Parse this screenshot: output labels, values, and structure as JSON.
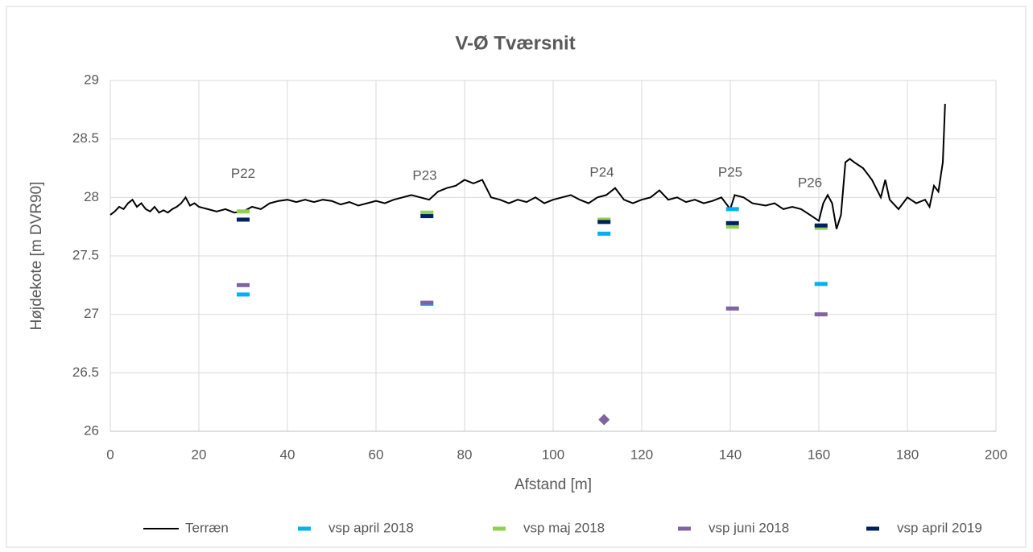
{
  "chart_data": {
    "type": "line",
    "title": "V-Ø Tværsnit",
    "x_label": "Afstand [m]",
    "y_label": "Højdekote [m DVR90]",
    "xlim": [
      0,
      200
    ],
    "xticks": [
      0,
      20,
      40,
      60,
      80,
      100,
      120,
      140,
      160,
      180,
      200
    ],
    "ylim": [
      26,
      29
    ],
    "yticks": [
      26,
      26.5,
      27,
      27.5,
      28,
      28.5,
      29
    ],
    "grid": true,
    "legend": "bottom",
    "annotations": [
      {
        "text": "P22",
        "x": 30,
        "y": 28.2
      },
      {
        "text": "P23",
        "x": 71,
        "y": 28.18
      },
      {
        "text": "P24",
        "x": 111,
        "y": 28.21
      },
      {
        "text": "P25",
        "x": 140,
        "y": 28.21
      },
      {
        "text": "P26",
        "x": 158,
        "y": 28.12
      }
    ],
    "series": [
      {
        "name": "Terræn",
        "color": "#000000",
        "style": "line",
        "x": [
          0,
          1,
          2,
          3,
          4,
          5,
          6,
          7,
          8,
          9,
          10,
          11,
          12,
          13,
          14,
          15,
          16,
          17,
          18,
          19,
          20,
          22,
          24,
          26,
          28,
          30,
          32,
          34,
          36,
          38,
          40,
          42,
          44,
          46,
          48,
          50,
          52,
          54,
          56,
          58,
          60,
          62,
          64,
          66,
          68,
          70,
          72,
          74,
          76,
          78,
          80,
          82,
          84,
          86,
          88,
          90,
          92,
          94,
          96,
          98,
          100,
          102,
          104,
          106,
          108,
          110,
          112,
          114,
          116,
          118,
          120,
          122,
          124,
          126,
          128,
          130,
          132,
          134,
          136,
          138,
          140,
          141,
          143,
          145,
          148,
          150,
          152,
          154,
          156,
          158,
          160,
          161,
          162,
          163,
          164,
          165,
          166,
          167,
          168,
          170,
          172,
          174,
          175,
          176,
          178,
          180,
          182,
          184,
          185,
          186,
          187,
          188,
          188.5
        ],
        "values": [
          27.85,
          27.88,
          27.92,
          27.9,
          27.95,
          27.98,
          27.92,
          27.95,
          27.9,
          27.88,
          27.92,
          27.87,
          27.89,
          27.87,
          27.9,
          27.92,
          27.95,
          28.0,
          27.93,
          27.95,
          27.92,
          27.9,
          27.88,
          27.9,
          27.87,
          27.88,
          27.92,
          27.9,
          27.95,
          27.97,
          27.98,
          27.96,
          27.98,
          27.96,
          27.98,
          27.97,
          27.94,
          27.96,
          27.93,
          27.95,
          27.97,
          27.95,
          27.98,
          28.0,
          28.02,
          28.0,
          27.98,
          28.05,
          28.08,
          28.1,
          28.15,
          28.12,
          28.15,
          28.0,
          27.98,
          27.95,
          27.98,
          27.96,
          28.0,
          27.95,
          27.98,
          28.0,
          28.02,
          27.98,
          27.95,
          28.0,
          28.02,
          28.08,
          27.98,
          27.95,
          27.98,
          28.0,
          28.06,
          27.98,
          28.0,
          27.96,
          27.98,
          27.95,
          27.97,
          28.0,
          27.9,
          28.02,
          28.0,
          27.95,
          27.93,
          27.95,
          27.9,
          27.92,
          27.9,
          27.85,
          27.8,
          27.95,
          28.02,
          27.95,
          27.73,
          27.85,
          28.3,
          28.33,
          28.3,
          28.25,
          28.15,
          28.0,
          28.15,
          27.98,
          27.9,
          28.0,
          27.95,
          27.98,
          27.92,
          28.1,
          28.05,
          28.3,
          28.8
        ]
      },
      {
        "name": "vsp april 2018",
        "color": "#00b0f0",
        "style": "marker",
        "x": [
          30,
          71.5,
          111.5,
          140.5,
          160.5
        ],
        "values": [
          27.17,
          27.09,
          27.69,
          27.9,
          27.26
        ]
      },
      {
        "name": "vsp maj 2018",
        "color": "#92d050",
        "style": "marker",
        "x": [
          30,
          71.5,
          111.5,
          140.5,
          160.5
        ],
        "values": [
          27.88,
          27.87,
          27.81,
          27.75,
          27.74
        ]
      },
      {
        "name": "vsp juni 2018",
        "color": "#8064a2",
        "style": "marker",
        "x": [
          30,
          71.5,
          111.5,
          140.5,
          160.5
        ],
        "values": [
          27.25,
          27.1,
          26.1,
          27.05,
          27.0
        ],
        "markers": [
          "dash",
          "dash",
          "diamond",
          "dash",
          "dash"
        ]
      },
      {
        "name": "vsp april 2019",
        "color": "#002060",
        "style": "marker",
        "x": [
          30,
          71.5,
          111.5,
          140.5,
          160.5
        ],
        "values": [
          27.81,
          27.84,
          27.79,
          27.78,
          27.76
        ]
      }
    ]
  }
}
